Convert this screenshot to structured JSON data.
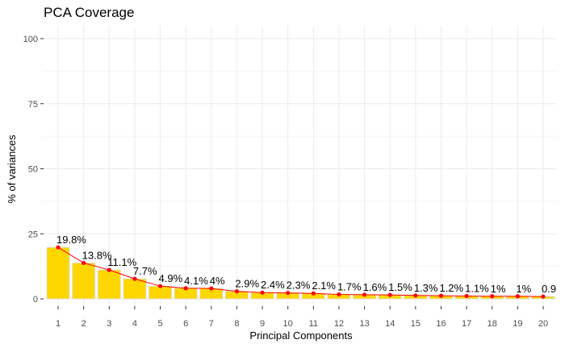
{
  "chart_data": {
    "type": "bar",
    "title": "PCA Coverage",
    "xlabel": "Principal Components",
    "ylabel": "% of variances",
    "categories": [
      "1",
      "2",
      "3",
      "4",
      "5",
      "6",
      "7",
      "8",
      "9",
      "10",
      "11",
      "12",
      "13",
      "14",
      "15",
      "16",
      "17",
      "18",
      "19",
      "20"
    ],
    "values": [
      19.8,
      13.8,
      11.1,
      7.7,
      4.9,
      4.1,
      4.0,
      2.9,
      2.4,
      2.3,
      2.1,
      1.7,
      1.6,
      1.5,
      1.3,
      1.2,
      1.1,
      1.0,
      1.0,
      0.9
    ],
    "labels": [
      "19.8%",
      "13.8%",
      "11.1%",
      "7.7%",
      "4.9%",
      "4.1%",
      "4%",
      "2.9%",
      "2.4%",
      "2.3%",
      "2.1%",
      "1.7%",
      "1.6%",
      "1.5%",
      "1.3%",
      "1.2%",
      "1.1%",
      "1%",
      "1%",
      "0.9"
    ],
    "ylim": [
      0,
      100
    ],
    "yticks": [
      "0",
      "25",
      "50",
      "75",
      "100"
    ],
    "grid": true,
    "overlay": "line-with-points",
    "colors": {
      "bar_fill": "#FFD700",
      "bar_stroke": "#d9d9d9",
      "line": "#FF0000",
      "point": "#FF0000",
      "panel": "#ffffff",
      "grid": "#ebebeb"
    }
  }
}
